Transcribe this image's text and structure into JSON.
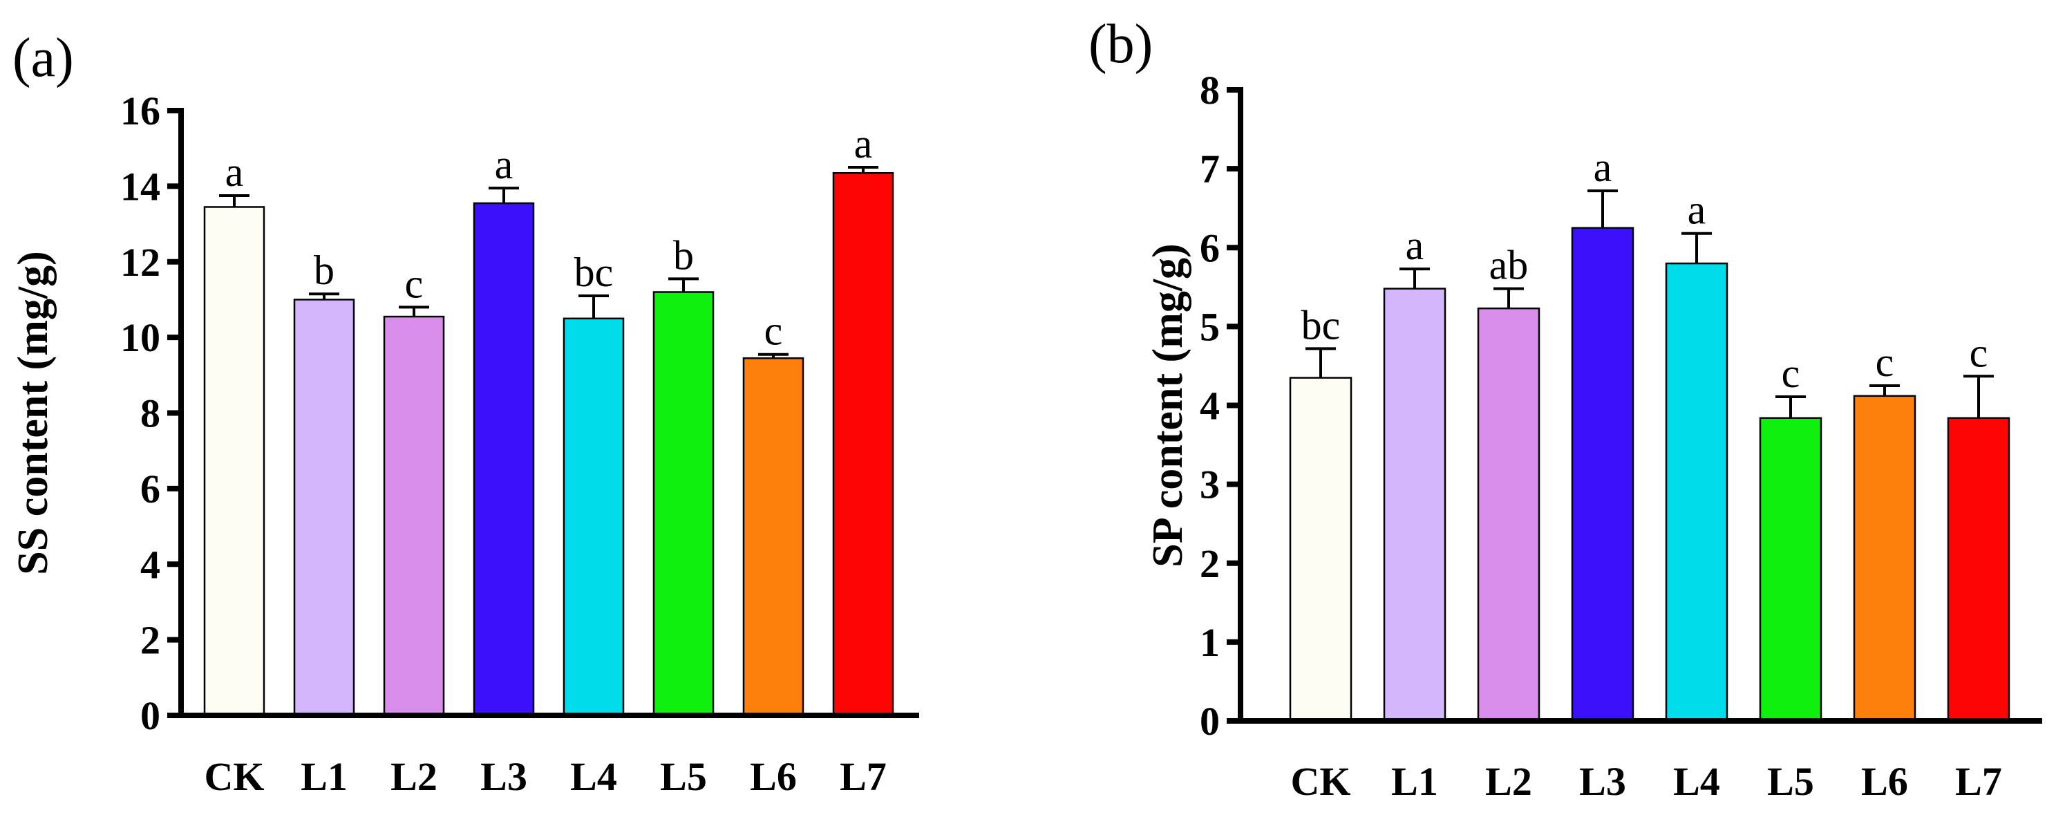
{
  "chart_data": [
    {
      "type": "bar",
      "panel_label": "(a)",
      "ylabel": "SS content (mg/g)",
      "xlabel": "",
      "ylim": [
        0,
        16
      ],
      "yticks": [
        0,
        2,
        4,
        6,
        8,
        10,
        12,
        14,
        16
      ],
      "categories": [
        "CK",
        "L1",
        "L2",
        "L3",
        "L4",
        "L5",
        "L6",
        "L7"
      ],
      "values": [
        13.45,
        11.0,
        10.55,
        13.55,
        10.5,
        11.2,
        9.45,
        14.35
      ],
      "errors": [
        0.3,
        0.15,
        0.25,
        0.4,
        0.6,
        0.35,
        0.1,
        0.15
      ],
      "significance": [
        "a",
        "b",
        "c",
        "a",
        "bc",
        "b",
        "c",
        "a"
      ],
      "colors": [
        "#FDFDF3",
        "#D4B6FC",
        "#DA8EEB",
        "#3D10FB",
        "#00DCE9",
        "#0FF00F",
        "#FE800C",
        "#FD0505"
      ]
    },
    {
      "type": "bar",
      "panel_label": "(b)",
      "ylabel": "SP content (mg/g)",
      "xlabel": "",
      "ylim": [
        0,
        8
      ],
      "yticks": [
        0,
        1,
        2,
        3,
        4,
        5,
        6,
        7,
        8
      ],
      "categories": [
        "CK",
        "L1",
        "L2",
        "L3",
        "L4",
        "L5",
        "L6",
        "L7"
      ],
      "values": [
        4.35,
        5.48,
        5.23,
        6.25,
        5.8,
        3.84,
        4.12,
        3.84
      ],
      "errors": [
        0.37,
        0.25,
        0.25,
        0.47,
        0.38,
        0.27,
        0.13,
        0.53
      ],
      "significance": [
        "bc",
        "a",
        "ab",
        "a",
        "a",
        "c",
        "c",
        "c"
      ],
      "colors": [
        "#FDFDF3",
        "#D4B6FC",
        "#DA8EEB",
        "#3D10FB",
        "#00DCE9",
        "#0FF00F",
        "#FE800C",
        "#FD0505"
      ]
    }
  ]
}
